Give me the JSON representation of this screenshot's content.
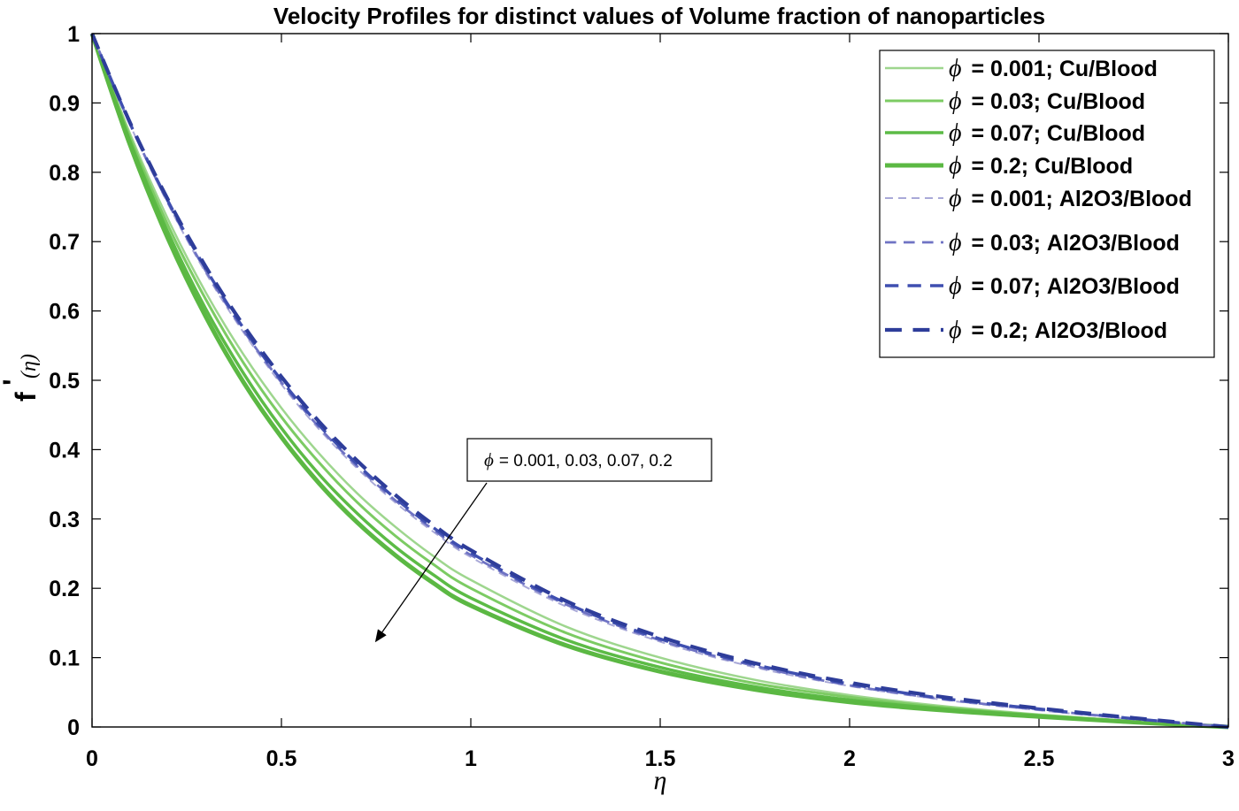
{
  "chart_data": {
    "type": "line",
    "title": "Velocity Profiles for distinct values of Volume fraction of nanoparticles",
    "xlabel": "η",
    "ylabel": "f'(η)",
    "xlim": [
      0,
      3
    ],
    "ylim": [
      0,
      1
    ],
    "xticks": [
      0,
      0.5,
      1,
      1.5,
      2,
      2.5,
      3
    ],
    "xtick_labels": [
      "0",
      "0.5",
      "1",
      "1.5",
      "2",
      "2.5",
      "3"
    ],
    "yticks": [
      0,
      0.1,
      0.2,
      0.3,
      0.4,
      0.5,
      0.6,
      0.7,
      0.8,
      0.9,
      1
    ],
    "ytick_labels": [
      "0",
      "0.1",
      "0.2",
      "0.3",
      "0.4",
      "0.5",
      "0.6",
      "0.7",
      "0.8",
      "0.9",
      "1"
    ],
    "legend_position": "top-right",
    "x": [
      0,
      0.1,
      0.2,
      0.3,
      0.4,
      0.5,
      0.6,
      0.7,
      0.8,
      0.9,
      1.0,
      1.25,
      1.5,
      1.75,
      2.0,
      2.25,
      2.5,
      2.75,
      3.0
    ],
    "series": [
      {
        "name": "φ = 0.001; Cu/Blood",
        "phi": "0.001",
        "fluid": "Cu/Blood",
        "style": "solid",
        "color": "#9ed68e",
        "width": 2.5,
        "values": [
          1.0,
          0.856,
          0.733,
          0.627,
          0.537,
          0.46,
          0.394,
          0.337,
          0.289,
          0.247,
          0.212,
          0.145,
          0.1,
          0.068,
          0.046,
          0.03,
          0.018,
          0.008,
          0.0
        ]
      },
      {
        "name": "φ = 0.03; Cu/Blood",
        "phi": "0.03",
        "fluid": "Cu/Blood",
        "style": "solid",
        "color": "#7ccb63",
        "width": 3,
        "values": [
          1.0,
          0.851,
          0.724,
          0.617,
          0.525,
          0.447,
          0.381,
          0.324,
          0.276,
          0.235,
          0.2,
          0.136,
          0.093,
          0.063,
          0.043,
          0.028,
          0.017,
          0.008,
          0.0
        ]
      },
      {
        "name": "φ = 0.07; Cu/Blood",
        "phi": "0.07",
        "fluid": "Cu/Blood",
        "style": "solid",
        "color": "#5cbb46",
        "width": 3.5,
        "values": [
          1.0,
          0.845,
          0.714,
          0.603,
          0.51,
          0.431,
          0.364,
          0.308,
          0.26,
          0.22,
          0.186,
          0.126,
          0.086,
          0.058,
          0.039,
          0.026,
          0.016,
          0.007,
          0.0
        ]
      },
      {
        "name": "φ = 0.2; Cu/Blood",
        "phi": "0.2",
        "fluid": "Cu/Blood",
        "style": "solid",
        "color": "#5bb843",
        "width": 5,
        "values": [
          1.0,
          0.84,
          0.705,
          0.592,
          0.497,
          0.418,
          0.351,
          0.295,
          0.248,
          0.208,
          0.175,
          0.118,
          0.08,
          0.054,
          0.036,
          0.024,
          0.015,
          0.007,
          0.0
        ]
      },
      {
        "name": "φ = 0.001; Al2O3/Blood",
        "phi": "0.001",
        "fluid": "Al2O3/Blood",
        "style": "dashed",
        "color": "#a9a9d8",
        "width": 2,
        "values": [
          1.0,
          0.869,
          0.755,
          0.655,
          0.569,
          0.494,
          0.429,
          0.373,
          0.324,
          0.282,
          0.245,
          0.174,
          0.123,
          0.086,
          0.059,
          0.039,
          0.024,
          0.011,
          0.0
        ]
      },
      {
        "name": "φ = 0.03; Al2O3/Blood",
        "phi": "0.03",
        "fluid": "Al2O3/Blood",
        "style": "dashed",
        "color": "#6f73c4",
        "width": 2.8,
        "values": [
          1.0,
          0.87,
          0.757,
          0.658,
          0.572,
          0.497,
          0.432,
          0.376,
          0.327,
          0.285,
          0.248,
          0.177,
          0.125,
          0.088,
          0.06,
          0.04,
          0.025,
          0.012,
          0.0
        ]
      },
      {
        "name": "φ = 0.07; Al2O3/Blood",
        "phi": "0.07",
        "fluid": "Al2O3/Blood",
        "style": "dashed",
        "color": "#3f4fb0",
        "width": 3.4,
        "values": [
          1.0,
          0.871,
          0.759,
          0.661,
          0.575,
          0.5,
          0.435,
          0.379,
          0.33,
          0.288,
          0.251,
          0.179,
          0.127,
          0.09,
          0.062,
          0.041,
          0.026,
          0.012,
          0.0
        ]
      },
      {
        "name": "φ = 0.2; Al2O3/Blood",
        "phi": "0.2",
        "fluid": "Al2O3/Blood",
        "style": "dashed",
        "color": "#2e3d9a",
        "width": 4.2,
        "values": [
          1.0,
          0.872,
          0.761,
          0.664,
          0.579,
          0.505,
          0.44,
          0.384,
          0.335,
          0.292,
          0.255,
          0.182,
          0.13,
          0.092,
          0.064,
          0.043,
          0.027,
          0.013,
          0.0
        ]
      }
    ],
    "annotation": {
      "phi": "ϕ",
      "text": "= 0.001, 0.03, 0.07, 0.2",
      "arrow_from": [
        0.95,
        0.35
      ],
      "arrow_to": [
        0.75,
        0.16
      ]
    }
  }
}
